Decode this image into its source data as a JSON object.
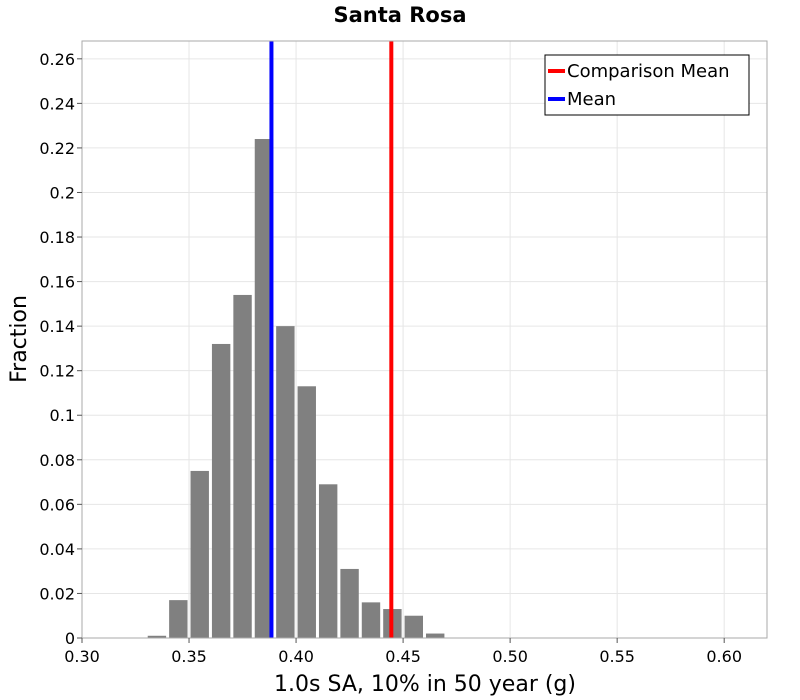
{
  "chart_data": {
    "type": "bar",
    "title": "Santa Rosa",
    "xlabel": "1.0s SA, 10% in 50 year (g)",
    "ylabel": "Fraction",
    "xlim": [
      0.3,
      0.62
    ],
    "ylim": [
      0,
      0.268
    ],
    "grid": true,
    "legend_position": "top-right",
    "x_ticks": [
      "0.30",
      "0.35",
      "0.40",
      "0.45",
      "0.50",
      "0.55",
      "0.60"
    ],
    "y_ticks": [
      "0",
      "0.02",
      "0.04",
      "0.06",
      "0.08",
      "0.1",
      "0.12",
      "0.14",
      "0.16",
      "0.18",
      "0.2",
      "0.22",
      "0.24",
      "0.26"
    ],
    "bin_width": 0.01,
    "bins": [
      {
        "x": 0.335,
        "value": 0.001
      },
      {
        "x": 0.345,
        "value": 0.017
      },
      {
        "x": 0.355,
        "value": 0.075
      },
      {
        "x": 0.365,
        "value": 0.132
      },
      {
        "x": 0.375,
        "value": 0.154
      },
      {
        "x": 0.385,
        "value": 0.224
      },
      {
        "x": 0.395,
        "value": 0.14
      },
      {
        "x": 0.405,
        "value": 0.113
      },
      {
        "x": 0.415,
        "value": 0.069
      },
      {
        "x": 0.425,
        "value": 0.031
      },
      {
        "x": 0.435,
        "value": 0.016
      },
      {
        "x": 0.445,
        "value": 0.013
      },
      {
        "x": 0.455,
        "value": 0.01
      },
      {
        "x": 0.465,
        "value": 0.002
      }
    ],
    "bar_color": "#808080",
    "vlines": [
      {
        "name": "Comparison Mean",
        "x": 0.4445,
        "color": "#ff0000"
      },
      {
        "name": "Mean",
        "x": 0.3885,
        "color": "#0000ff"
      }
    ]
  }
}
